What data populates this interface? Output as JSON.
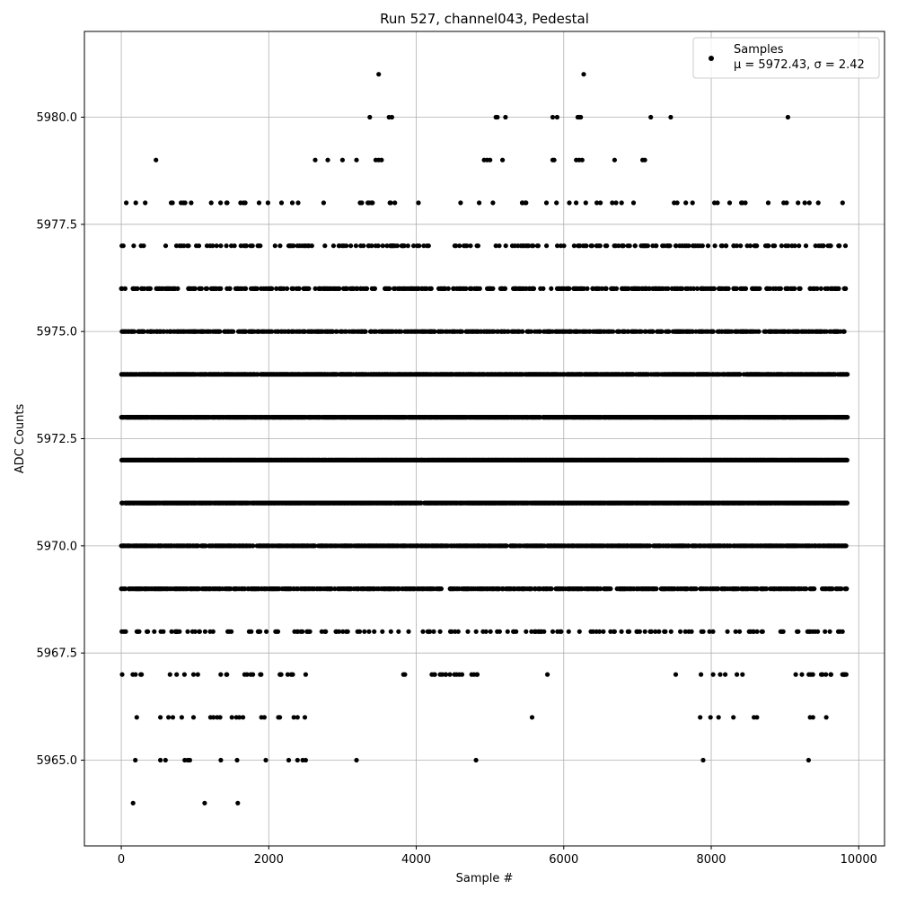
{
  "chart_data": {
    "type": "scatter",
    "title": "Run 527, channel043, Pedestal",
    "xlabel": "Sample #",
    "ylabel": "ADC Counts",
    "xlim": [
      -500,
      10350
    ],
    "ylim": [
      5963.0,
      5982.0
    ],
    "xticks": [
      0,
      2000,
      4000,
      6000,
      8000,
      10000
    ],
    "xtick_labels": [
      "0",
      "2000",
      "4000",
      "6000",
      "8000",
      "10000"
    ],
    "yticks": [
      5965.0,
      5967.5,
      5970.0,
      5972.5,
      5975.0,
      5977.5,
      5980.0
    ],
    "ytick_labels": [
      "5965.0",
      "5967.5",
      "5970.0",
      "5972.5",
      "5975.0",
      "5977.5",
      "5980.0"
    ],
    "grid": true,
    "legend_position": "top-right",
    "legend": {
      "label_line1": "Samples",
      "label_line2": "μ = 5972.43, σ = 2.42"
    },
    "series": [
      {
        "name": "Samples",
        "color": "#000000",
        "marker": "circle",
        "x_start": 0,
        "x_end": 9840,
        "x_step": 1,
        "levels": [
          {
            "y": 5964,
            "x": [
              160,
              1130,
              1580
            ]
          },
          {
            "y": 5965,
            "x": [
              190,
              530,
              600,
              860,
              900,
              930,
              1350,
              1570,
              1960,
              2270,
              2390,
              2460,
              2500,
              3190,
              4810,
              7890,
              9320
            ]
          },
          {
            "y": 5966,
            "x": [
              210,
              530,
              640,
              700,
              820,
              980,
              1210,
              1250,
              1300,
              1340,
              1500,
              1560,
              1600,
              1650,
              1900,
              1940,
              2130,
              2150,
              2340,
              2390,
              2490,
              5570,
              7850,
              7990,
              8100,
              8300,
              8580,
              8620,
              9340,
              9380,
              9560
            ]
          },
          {
            "y": 5981,
            "x": [
              3490,
              6270
            ]
          },
          {
            "y": 5980,
            "x": [
              3370,
              3630,
              3670,
              5080,
              5100,
              5210,
              5850,
              5910,
              6190,
              6210,
              6230,
              7180,
              7450,
              9040
            ]
          },
          {
            "y": 5979,
            "x": [
              470,
              2630,
              2800,
              3000,
              3190,
              3450,
              3490,
              3530,
              4920,
              4960,
              5000,
              5170,
              5850,
              5870,
              6170,
              6210,
              6250,
              6690,
              7070,
              7100
            ]
          }
        ],
        "bands": [
          {
            "y": 5967,
            "density": 0.02,
            "gap_ranges": [
              [
                2500,
                4200
              ],
              [
                4900,
                7500
              ],
              [
                8200,
                9000
              ]
            ]
          },
          {
            "y": 5968,
            "density": 0.03,
            "gap_ranges": []
          },
          {
            "y": 5969,
            "density": 0.12,
            "gap_ranges": []
          },
          {
            "y": 5970,
            "density": 0.16,
            "gap_ranges": []
          },
          {
            "y": 5971,
            "density": 0.2,
            "gap_ranges": []
          },
          {
            "y": 5972,
            "density": 0.22,
            "gap_ranges": []
          },
          {
            "y": 5973,
            "density": 0.2,
            "gap_ranges": []
          },
          {
            "y": 5974,
            "density": 0.16,
            "gap_ranges": []
          },
          {
            "y": 5975,
            "density": 0.11,
            "gap_ranges": []
          },
          {
            "y": 5976,
            "density": 0.07,
            "gap_ranges": []
          },
          {
            "y": 5977,
            "density": 0.04,
            "gap_ranges": []
          },
          {
            "y": 5978,
            "density": 0.012,
            "gap_ranges": []
          }
        ]
      }
    ]
  }
}
